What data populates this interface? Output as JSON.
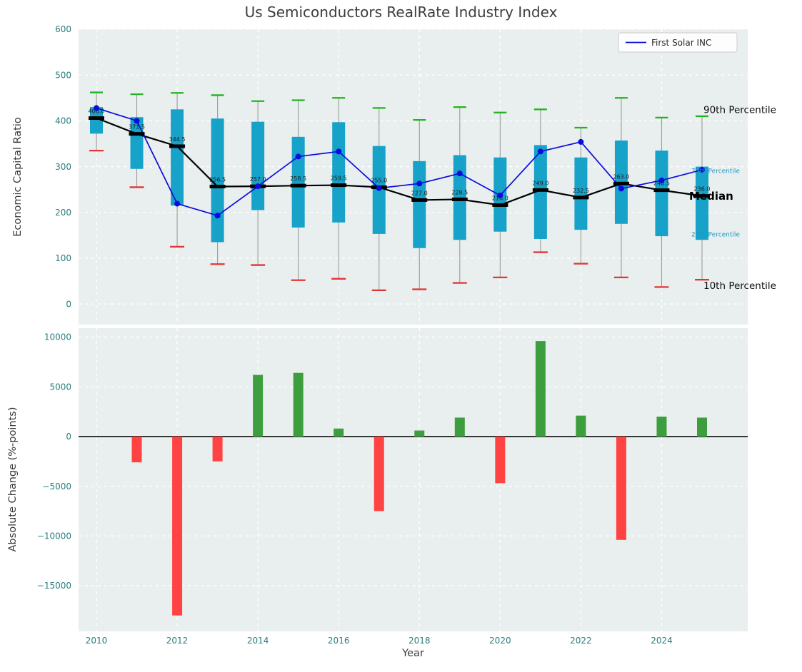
{
  "title": "Us Semiconductors RealRate Industry Index",
  "legend": {
    "label": "First Solar INC"
  },
  "colors": {
    "figure_bg": "#ffffff",
    "panel_bg": "#e9efee",
    "grid": "#ffffff",
    "box_fill": "#16a2c9",
    "whisker": "#9a9a9a",
    "cap_high": "#22b422",
    "cap_low": "#e33434",
    "median": "#000000",
    "line_series": "#0b0bdf",
    "tick_text": "#2a7c7c",
    "bar_positive": "#3c9e3c",
    "bar_negative": "#ff4343",
    "pct_small_text": "#2596be",
    "legend_bg": "#fdfdfd",
    "legend_border": "#cccccc"
  },
  "chart_data": [
    {
      "type": "boxplot+line",
      "title": "Us Semiconductors RealRate Industry Index",
      "ylabel": "Economic Capital Ratio",
      "xlabel": "Year",
      "ylim": [
        -45,
        600
      ],
      "yticks": [
        0,
        100,
        200,
        300,
        400,
        500,
        600
      ],
      "grid": true,
      "legend_position": "upper right",
      "years": [
        2010,
        2011,
        2012,
        2013,
        2014,
        2015,
        2016,
        2017,
        2018,
        2019,
        2020,
        2021,
        2022,
        2023,
        2024,
        2025
      ],
      "percentile_10": [
        335,
        255,
        125,
        87,
        85,
        52,
        55,
        30,
        32,
        46,
        58,
        113,
        88,
        58,
        37,
        53
      ],
      "percentile_25": [
        372,
        295,
        215,
        135,
        205,
        167,
        178,
        153,
        122,
        140,
        158,
        142,
        162,
        175,
        148,
        140
      ],
      "median": [
        406.0,
        371.5,
        344.5,
        256.5,
        257.0,
        258.5,
        259.5,
        255.0,
        227.0,
        228.5,
        216.0,
        249.0,
        232.5,
        263.0,
        248.5,
        236.0
      ],
      "median_labels": [
        "406.0",
        "371.5",
        "344.5",
        "256.5",
        "257.0",
        "258.5",
        "259.5",
        "255.0",
        "227.0",
        "228.5",
        "216.0",
        "249.0",
        "232.5",
        "263.0",
        "248.5",
        "236.0"
      ],
      "percentile_75": [
        430,
        408,
        425,
        405,
        398,
        365,
        397,
        345,
        312,
        325,
        320,
        347,
        320,
        357,
        335,
        300
      ],
      "percentile_90": [
        462,
        458,
        461,
        456,
        443,
        445,
        450,
        428,
        402,
        430,
        418,
        425,
        385,
        450,
        407,
        410
      ],
      "series": [
        {
          "name": "First Solar INC",
          "color": "#0b0bdf",
          "values": [
            428,
            400,
            219,
            193,
            257,
            322,
            333,
            253,
            263,
            285,
            237,
            333,
            354,
            252,
            270,
            293
          ]
        }
      ],
      "annotations": [
        {
          "text": "90th Percentile",
          "x": 985,
          "value": 424,
          "size": 13.5,
          "color": "#111111",
          "bold": false
        },
        {
          "text": "75th Percentile",
          "x": 968,
          "value": 291,
          "size": 9,
          "color": "#2596be",
          "bold": false
        },
        {
          "text": "Median",
          "x": 965,
          "value": 236,
          "size": 15,
          "color": "#000000",
          "bold": true
        },
        {
          "text": "25th Percentile",
          "x": 968,
          "value": 152,
          "size": 9,
          "color": "#2596be",
          "bold": false
        },
        {
          "text": "10th Percentile",
          "x": 985,
          "value": 40,
          "size": 13.5,
          "color": "#111111",
          "bold": false
        }
      ]
    },
    {
      "type": "bar",
      "ylabel": "Absolute Change (%-points)",
      "xlabel": "Year",
      "ylim": [
        -19600,
        10900
      ],
      "yticks": [
        10000,
        5000,
        0,
        -5000,
        -10000,
        -15000
      ],
      "xticks": [
        2010,
        2012,
        2014,
        2016,
        2018,
        2020,
        2022,
        2024
      ],
      "years": [
        2010,
        2011,
        2012,
        2013,
        2014,
        2015,
        2016,
        2017,
        2018,
        2019,
        2020,
        2021,
        2022,
        2023,
        2024,
        2025
      ],
      "values": [
        0,
        -2600,
        -18000,
        -2500,
        6200,
        6400,
        800,
        -7500,
        600,
        1900,
        -4700,
        9600,
        2100,
        -10400,
        2000,
        1900
      ]
    }
  ]
}
